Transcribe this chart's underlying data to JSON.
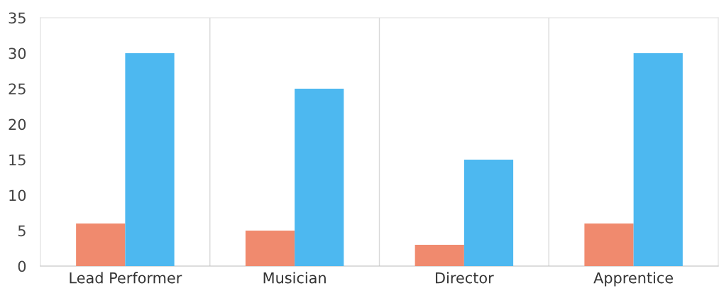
{
  "chart_data": {
    "type": "bar",
    "categories": [
      "Lead Performer",
      "Musician",
      "Director",
      "Apprentice"
    ],
    "series": [
      {
        "color": "#f08a6e",
        "values": [
          6,
          5,
          3,
          6
        ]
      },
      {
        "color": "#4db8f0",
        "values": [
          30,
          25,
          15,
          30
        ]
      }
    ],
    "ylim": [
      0,
      35
    ],
    "yticks": [
      0,
      5,
      10,
      15,
      20,
      25,
      30,
      35
    ],
    "grid": "x",
    "legend": false
  }
}
